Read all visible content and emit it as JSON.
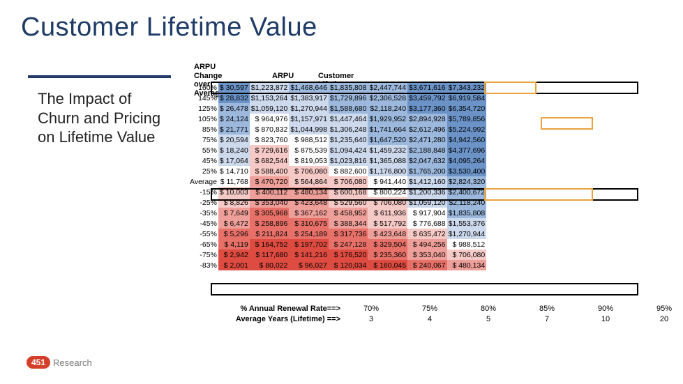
{
  "title": "Customer Lifetime Value",
  "sidebar": "The Impact of Churn and Pricing on Lifetime Value",
  "headers": {
    "arpu_change": "ARPU Change\nover Average",
    "arpu": "ARPU",
    "clv": "Customer Lifetime Value --->"
  },
  "palette": {
    "blue_strong": "#6b93c8",
    "blue_med": "#9cb8dc",
    "blue_light": "#cdd9ec",
    "neutral": "#ffffff",
    "red_light": "#f5c9c5",
    "red_med": "#ef9f99",
    "red_strong": "#e77169",
    "red_vstrong": "#de4b40"
  },
  "rows": [
    {
      "label": "160%",
      "arpu": "$   30,597",
      "arpu_shade": "blue_strong",
      "cells": [
        {
          "v": "$1,223,872",
          "s": "blue_light"
        },
        {
          "v": "$1,468,646",
          "s": "blue_med"
        },
        {
          "v": "$1,835,808",
          "s": "blue_med"
        },
        {
          "v": "$2,447,744",
          "s": "blue_med"
        },
        {
          "v": "$3,671,616",
          "s": "blue_strong"
        },
        {
          "v": "$7,343,232",
          "s": "blue_strong"
        }
      ]
    },
    {
      "label": "145%",
      "arpu": "$   28,832",
      "arpu_shade": "blue_strong",
      "cells": [
        {
          "v": "$1,153,264",
          "s": "blue_light"
        },
        {
          "v": "$1,383,917",
          "s": "blue_light"
        },
        {
          "v": "$1,729,896",
          "s": "blue_med"
        },
        {
          "v": "$2,306,528",
          "s": "blue_med"
        },
        {
          "v": "$3,459,792",
          "s": "blue_strong"
        },
        {
          "v": "$6,919,584",
          "s": "blue_strong"
        }
      ]
    },
    {
      "label": "125%",
      "arpu": "$   26,478",
      "arpu_shade": "blue_med",
      "cells": [
        {
          "v": "$1,059,120",
          "s": "blue_light"
        },
        {
          "v": "$1,270,944",
          "s": "blue_light"
        },
        {
          "v": "$1,588,680",
          "s": "blue_med"
        },
        {
          "v": "$2,118,240",
          "s": "blue_med"
        },
        {
          "v": "$3,177,360",
          "s": "blue_strong"
        },
        {
          "v": "$6,354,720",
          "s": "blue_strong"
        }
      ]
    },
    {
      "label": "105%",
      "arpu": "$   24,124",
      "arpu_shade": "blue_med",
      "cells": [
        {
          "v": "$   964,976",
          "s": "neutral"
        },
        {
          "v": "$1,157,971",
          "s": "blue_light"
        },
        {
          "v": "$1,447,464",
          "s": "blue_light"
        },
        {
          "v": "$1,929,952",
          "s": "blue_med"
        },
        {
          "v": "$2,894,928",
          "s": "blue_med"
        },
        {
          "v": "$5,789,856",
          "s": "blue_strong"
        }
      ]
    },
    {
      "label": "85%",
      "arpu": "$   21,771",
      "arpu_shade": "blue_med",
      "cells": [
        {
          "v": "$   870,832",
          "s": "neutral"
        },
        {
          "v": "$1,044,998",
          "s": "blue_light"
        },
        {
          "v": "$1,306,248",
          "s": "blue_light"
        },
        {
          "v": "$1,741,664",
          "s": "blue_med"
        },
        {
          "v": "$2,612,496",
          "s": "blue_med"
        },
        {
          "v": "$5,224,992",
          "s": "blue_strong"
        }
      ]
    },
    {
      "label": "75%",
      "arpu": "$   20,594",
      "arpu_shade": "blue_light",
      "cells": [
        {
          "v": "$   823,760",
          "s": "neutral"
        },
        {
          "v": "$   988,512",
          "s": "neutral"
        },
        {
          "v": "$1,235,640",
          "s": "blue_light"
        },
        {
          "v": "$1,647,520",
          "s": "blue_med"
        },
        {
          "v": "$2,471,280",
          "s": "blue_med"
        },
        {
          "v": "$4,942,560",
          "s": "blue_strong"
        }
      ]
    },
    {
      "label": "55%",
      "arpu": "$   18,240",
      "arpu_shade": "blue_light",
      "cells": [
        {
          "v": "$   729,616",
          "s": "red_light"
        },
        {
          "v": "$   875,539",
          "s": "neutral"
        },
        {
          "v": "$1,094,424",
          "s": "blue_light"
        },
        {
          "v": "$1,459,232",
          "s": "blue_light"
        },
        {
          "v": "$2,188,848",
          "s": "blue_med"
        },
        {
          "v": "$4,377,696",
          "s": "blue_strong"
        }
      ]
    },
    {
      "label": "45%",
      "arpu": "$   17,064",
      "arpu_shade": "blue_light",
      "cells": [
        {
          "v": "$   682,544",
          "s": "red_light"
        },
        {
          "v": "$   819,053",
          "s": "neutral"
        },
        {
          "v": "$1,023,816",
          "s": "blue_light"
        },
        {
          "v": "$1,365,088",
          "s": "blue_light"
        },
        {
          "v": "$2,047,632",
          "s": "blue_med"
        },
        {
          "v": "$4,095,264",
          "s": "blue_strong"
        }
      ]
    },
    {
      "label": "25%",
      "arpu": "$   14,710",
      "arpu_shade": "neutral",
      "cells": [
        {
          "v": "$   588,400",
          "s": "red_light"
        },
        {
          "v": "$   706,080",
          "s": "red_light"
        },
        {
          "v": "$   882,600",
          "s": "neutral"
        },
        {
          "v": "$1,176,800",
          "s": "blue_light"
        },
        {
          "v": "$1,765,200",
          "s": "blue_med"
        },
        {
          "v": "$3,530,400",
          "s": "blue_strong"
        }
      ]
    },
    {
      "label": "Average",
      "arpu": "$   11,768",
      "arpu_shade": "neutral",
      "cells": [
        {
          "v": "$   470,720",
          "s": "red_med"
        },
        {
          "v": "$   564,864",
          "s": "red_light"
        },
        {
          "v": "$   706,080",
          "s": "red_light"
        },
        {
          "v": "$   941,440",
          "s": "neutral"
        },
        {
          "v": "$1,412,160",
          "s": "blue_light"
        },
        {
          "v": "$2,824,320",
          "s": "blue_med"
        }
      ]
    },
    {
      "label": "-15%",
      "arpu": "$   10,003",
      "arpu_shade": "red_light",
      "cells": [
        {
          "v": "$   400,112",
          "s": "red_med"
        },
        {
          "v": "$   480,134",
          "s": "red_med"
        },
        {
          "v": "$   600,168",
          "s": "red_light"
        },
        {
          "v": "$   800,224",
          "s": "neutral"
        },
        {
          "v": "$1,200,336",
          "s": "blue_light"
        },
        {
          "v": "$2,400,672",
          "s": "blue_med"
        }
      ]
    },
    {
      "label": "-25%",
      "arpu": "$     8,826",
      "arpu_shade": "red_light",
      "cells": [
        {
          "v": "$   353,040",
          "s": "red_med"
        },
        {
          "v": "$   423,648",
          "s": "red_med"
        },
        {
          "v": "$   529,560",
          "s": "red_light"
        },
        {
          "v": "$   706,080",
          "s": "red_light"
        },
        {
          "v": "$1,059,120",
          "s": "blue_light"
        },
        {
          "v": "$2,118,240",
          "s": "blue_med"
        }
      ]
    },
    {
      "label": "-35%",
      "arpu": "$     7,649",
      "arpu_shade": "red_med",
      "cells": [
        {
          "v": "$   305,968",
          "s": "red_strong"
        },
        {
          "v": "$   367,162",
          "s": "red_med"
        },
        {
          "v": "$   458,952",
          "s": "red_med"
        },
        {
          "v": "$   611,936",
          "s": "red_light"
        },
        {
          "v": "$   917,904",
          "s": "neutral"
        },
        {
          "v": "$1,835,808",
          "s": "blue_med"
        }
      ]
    },
    {
      "label": "-45%",
      "arpu": "$     6,472",
      "arpu_shade": "red_med",
      "cells": [
        {
          "v": "$   258,896",
          "s": "red_strong"
        },
        {
          "v": "$   310,675",
          "s": "red_strong"
        },
        {
          "v": "$   388,344",
          "s": "red_med"
        },
        {
          "v": "$   517,792",
          "s": "red_light"
        },
        {
          "v": "$   776,688",
          "s": "neutral"
        },
        {
          "v": "$1,553,376",
          "s": "blue_light"
        }
      ]
    },
    {
      "label": "-55%",
      "arpu": "$     5,296",
      "arpu_shade": "red_strong",
      "cells": [
        {
          "v": "$   211,824",
          "s": "red_strong"
        },
        {
          "v": "$   254,189",
          "s": "red_strong"
        },
        {
          "v": "$   317,736",
          "s": "red_strong"
        },
        {
          "v": "$   423,648",
          "s": "red_med"
        },
        {
          "v": "$   635,472",
          "s": "red_light"
        },
        {
          "v": "$1,270,944",
          "s": "blue_light"
        }
      ]
    },
    {
      "label": "-65%",
      "arpu": "$     4,119",
      "arpu_shade": "red_strong",
      "cells": [
        {
          "v": "$   164,752",
          "s": "red_vstrong"
        },
        {
          "v": "$   197,702",
          "s": "red_vstrong"
        },
        {
          "v": "$   247,128",
          "s": "red_strong"
        },
        {
          "v": "$   329,504",
          "s": "red_strong"
        },
        {
          "v": "$   494,256",
          "s": "red_med"
        },
        {
          "v": "$   988,512",
          "s": "neutral"
        }
      ]
    },
    {
      "label": "-75%",
      "arpu": "$     2,942",
      "arpu_shade": "red_vstrong",
      "cells": [
        {
          "v": "$   117,680",
          "s": "red_vstrong"
        },
        {
          "v": "$   141,216",
          "s": "red_vstrong"
        },
        {
          "v": "$   176,520",
          "s": "red_vstrong"
        },
        {
          "v": "$   235,360",
          "s": "red_strong"
        },
        {
          "v": "$   353,040",
          "s": "red_med"
        },
        {
          "v": "$   706,080",
          "s": "red_light"
        }
      ]
    },
    {
      "label": "-83%",
      "arpu": "$     2,001",
      "arpu_shade": "red_vstrong",
      "cells": [
        {
          "v": "$     80,022",
          "s": "red_vstrong"
        },
        {
          "v": "$     96,027",
          "s": "red_vstrong"
        },
        {
          "v": "$   120,034",
          "s": "red_vstrong"
        },
        {
          "v": "$   160,045",
          "s": "red_vstrong"
        },
        {
          "v": "$   240,067",
          "s": "red_strong"
        },
        {
          "v": "$   480,134",
          "s": "red_med"
        }
      ]
    }
  ],
  "footer": {
    "renewal_label": "% Annual Renewal Rate==>",
    "renewal": [
      "70%",
      "75%",
      "80%",
      "85%",
      "90%",
      "95%"
    ],
    "years_label": "Average Years (Lifetime) ==>",
    "years": [
      "3",
      "4",
      "5",
      "7",
      "10",
      "20"
    ]
  },
  "logo": {
    "badge": "451",
    "text": "Research"
  }
}
